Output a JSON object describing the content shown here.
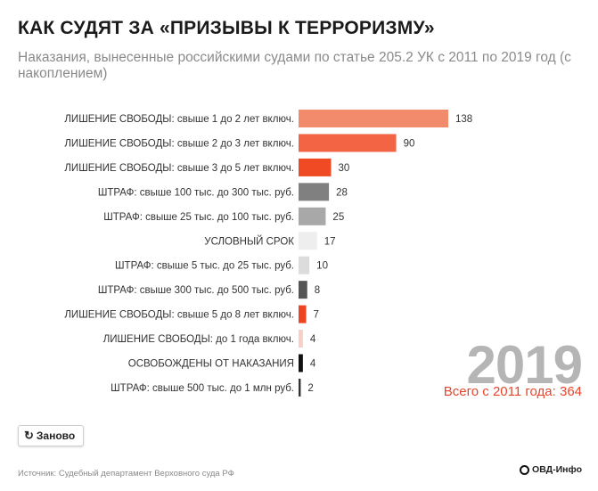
{
  "title": "КАК СУДЯТ ЗА «ПРИЗЫВЫ К ТЕРРОРИЗМУ»",
  "subtitle": "Наказания, вынесенные российскими судами по статье 205.2 УК с 2011 по 2019 год (с накоплением)",
  "year": "2019",
  "total_text": "Всего с 2011 года: 364",
  "replay_icon": "↻",
  "replay_label": "Заново",
  "source": "Источник: Судебный департамент Верховного суда РФ",
  "logo_text": "ОВД-Инфо",
  "chart_data": {
    "type": "bar",
    "orientation": "horizontal",
    "title": "",
    "xlabel": "",
    "ylabel": "",
    "grid": false,
    "legend": "none",
    "categories": [
      "ЛИШЕНИЕ СВОБОДЫ: свыше 1 до 2 лет включ.",
      "ЛИШЕНИЕ СВОБОДЫ: свыше 2 до 3 лет включ.",
      "ЛИШЕНИЕ СВОБОДЫ: свыше 3 до 5 лет включ.",
      "ШТРАФ: свыше 100 тыс. до 300 тыс. руб.",
      "ШТРАФ: свыше 25 тыс. до 100 тыс. руб.",
      "УСЛОВНЫЙ СРОК",
      "ШТРАФ: свыше 5 тыс. до 25 тыс. руб.",
      "ШТРАФ: свыше 300 тыс. до 500 тыс. руб.",
      "ЛИШЕНИЕ СВОБОДЫ: свыше 5 до 8 лет включ.",
      "ЛИШЕНИЕ СВОБОДЫ: до 1 года включ.",
      "ОСВОБОЖДЕНЫ ОТ НАКАЗАНИЯ",
      "ШТРАФ: свыше 500 тыс. до 1 млн руб."
    ],
    "values": [
      138,
      90,
      30,
      28,
      25,
      17,
      10,
      8,
      7,
      4,
      4,
      2
    ],
    "colors": [
      "#f28b6c",
      "#f26444",
      "#ef4a23",
      "#808080",
      "#a8a8a8",
      "#eeeeee",
      "#dcdcdc",
      "#555555",
      "#ee4422",
      "#f7cfc6",
      "#111111",
      "#333333"
    ],
    "xlim": [
      0,
      138
    ]
  }
}
